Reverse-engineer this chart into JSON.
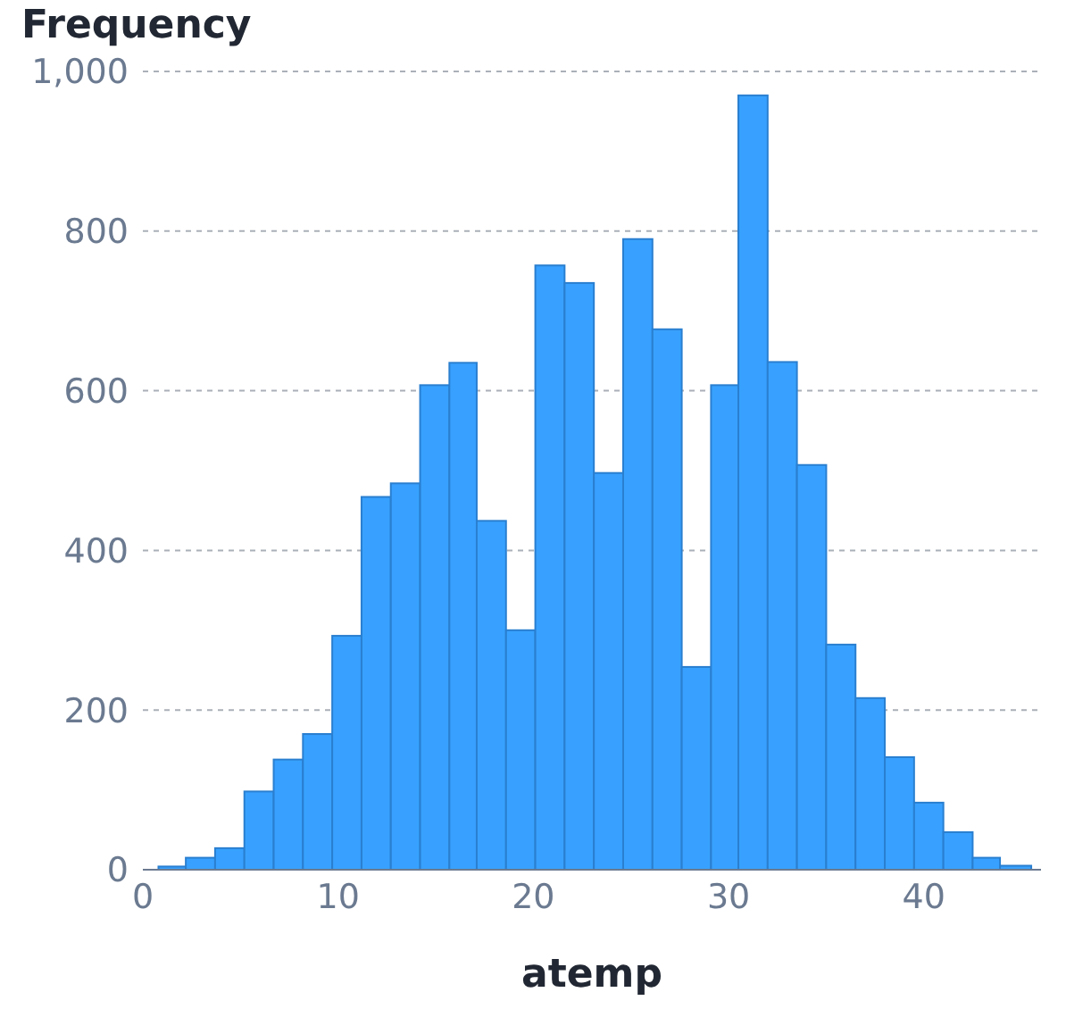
{
  "chart_data": {
    "type": "histogram",
    "title": "Frequency",
    "xlabel": "atemp",
    "bins": [
      0.8,
      2.2,
      3.7,
      5.2,
      6.7,
      8.2,
      9.7,
      11.2,
      12.7,
      14.2,
      15.7,
      17.1,
      18.6,
      20.1,
      21.6,
      23.1,
      24.6,
      26.1,
      27.6,
      29.1,
      30.5,
      32.0,
      33.5,
      35.0,
      36.5,
      38.0,
      39.5,
      41.0,
      42.5,
      43.9,
      45.5
    ],
    "values": [
      4,
      15,
      27,
      98,
      138,
      170,
      293,
      467,
      484,
      607,
      635,
      437,
      300,
      757,
      735,
      497,
      790,
      677,
      254,
      607,
      970,
      636,
      507,
      282,
      215,
      141,
      84,
      47,
      15,
      5
    ],
    "color": "#38a1ff",
    "xlim": [
      0,
      46
    ],
    "xticks": [
      0,
      10,
      20,
      30,
      40
    ],
    "ylim": [
      0,
      1000
    ],
    "yticks": [
      0,
      200,
      400,
      600,
      800,
      {
        "value": 1000,
        "label": "1,000"
      }
    ],
    "grid": "y"
  }
}
